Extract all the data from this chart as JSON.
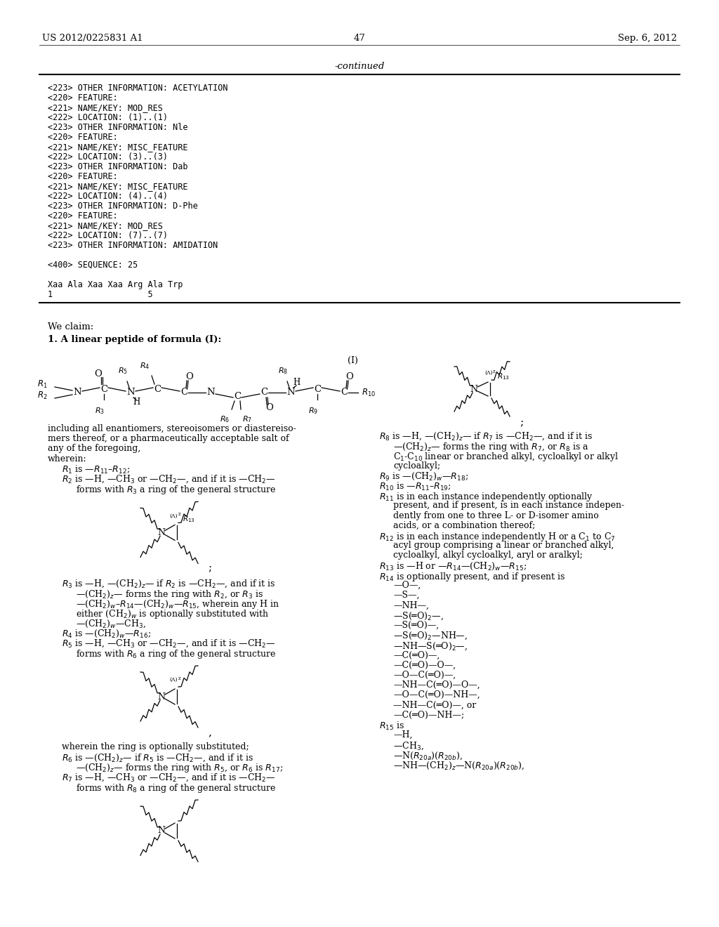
{
  "page_header_left": "US 2012/0225831 A1",
  "page_header_right": "Sep. 6, 2012",
  "page_number": "47",
  "continued_label": "-continued",
  "sequence_lines": [
    "<223> OTHER INFORMATION: ACETYLATION",
    "<220> FEATURE:",
    "<221> NAME/KEY: MOD_RES",
    "<222> LOCATION: (1)..(1)",
    "<223> OTHER INFORMATION: Nle",
    "<220> FEATURE:",
    "<221> NAME/KEY: MISC_FEATURE",
    "<222> LOCATION: (3)..(3)",
    "<223> OTHER INFORMATION: Dab",
    "<220> FEATURE:",
    "<221> NAME/KEY: MISC_FEATURE",
    "<222> LOCATION: (4)..(4)",
    "<223> OTHER INFORMATION: D-Phe",
    "<220> FEATURE:",
    "<221> NAME/KEY: MOD_RES",
    "<222> LOCATION: (7)..(7)",
    "<223> OTHER INFORMATION: AMIDATION",
    "",
    "<400> SEQUENCE: 25",
    "",
    "Xaa Ala Xaa Xaa Arg Ala Trp",
    "1                   5"
  ]
}
